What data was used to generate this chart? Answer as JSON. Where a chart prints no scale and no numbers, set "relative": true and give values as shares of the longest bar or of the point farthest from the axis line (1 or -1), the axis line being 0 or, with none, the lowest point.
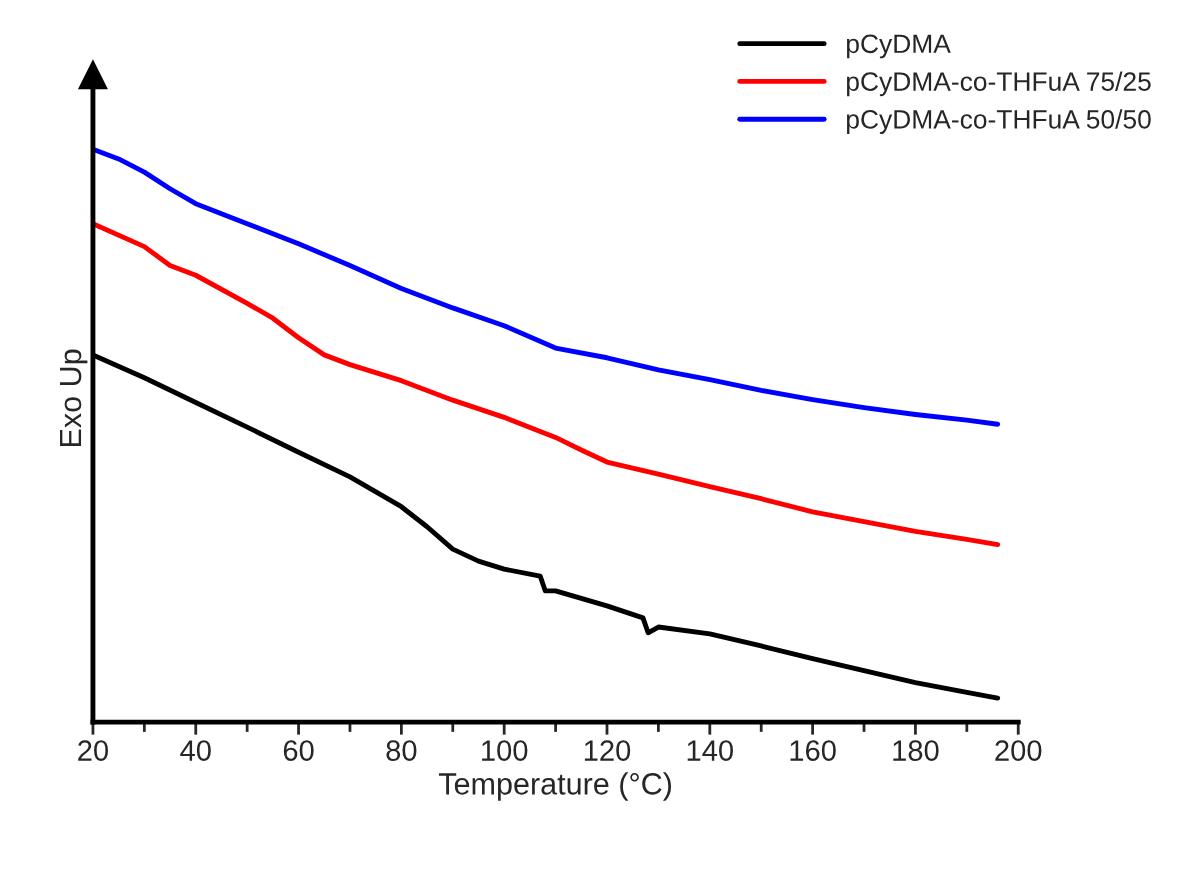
{
  "chart_data": {
    "type": "line",
    "relative": true,
    "xlabel": "Temperature (°C)",
    "ylabel": "Exo Up",
    "xlim": [
      20,
      200
    ],
    "xticks": [
      20,
      {
        "value": 30,
        "label": null
      },
      40,
      {
        "value": 50,
        "label": null
      },
      60,
      {
        "value": 70,
        "label": null
      },
      80,
      {
        "value": 90,
        "label": null
      },
      100,
      {
        "value": 110,
        "label": null
      },
      120,
      {
        "value": 130,
        "label": null
      },
      140,
      {
        "value": 150,
        "label": null
      },
      160,
      {
        "value": 170,
        "label": null
      },
      180,
      {
        "value": 190,
        "label": null
      },
      200
    ],
    "legend": "top right",
    "grid": false,
    "marker": "none",
    "line_style": "solid",
    "series": [
      {
        "name": "pCyDMA",
        "color": "#000000",
        "x": [
          20,
          30,
          40,
          50,
          60,
          70,
          80,
          85,
          90,
          95,
          100,
          107,
          108,
          110,
          120,
          127,
          128,
          130,
          140,
          150,
          160,
          170,
          180,
          190,
          196
        ],
        "values": [
          0.641,
          0.601,
          0.558,
          0.515,
          0.471,
          0.428,
          0.376,
          0.341,
          0.302,
          0.281,
          0.267,
          0.255,
          0.229,
          0.229,
          0.203,
          0.182,
          0.156,
          0.166,
          0.154,
          0.133,
          0.111,
          0.09,
          0.069,
          0.052,
          0.042
        ]
      },
      {
        "name": "pCyDMA-co-THFuA 75/25",
        "color": "#ff0000",
        "x": [
          20,
          30,
          35,
          40,
          50,
          55,
          60,
          65,
          70,
          80,
          90,
          100,
          110,
          115,
          120,
          130,
          140,
          150,
          160,
          170,
          180,
          190,
          196
        ],
        "values": [
          0.87,
          0.83,
          0.797,
          0.78,
          0.731,
          0.705,
          0.671,
          0.641,
          0.624,
          0.596,
          0.562,
          0.532,
          0.497,
          0.475,
          0.454,
          0.433,
          0.411,
          0.39,
          0.367,
          0.35,
          0.333,
          0.319,
          0.31
        ]
      },
      {
        "name": "pCyDMA-co-THFuA 50/50",
        "color": "#0000ff",
        "x": [
          20,
          25,
          30,
          35,
          40,
          50,
          60,
          70,
          80,
          90,
          100,
          110,
          120,
          130,
          140,
          150,
          160,
          170,
          180,
          190,
          196
        ],
        "values": [
          1.0,
          0.983,
          0.96,
          0.931,
          0.905,
          0.87,
          0.835,
          0.797,
          0.757,
          0.723,
          0.692,
          0.653,
          0.636,
          0.615,
          0.598,
          0.579,
          0.563,
          0.549,
          0.537,
          0.527,
          0.52
        ]
      }
    ]
  }
}
